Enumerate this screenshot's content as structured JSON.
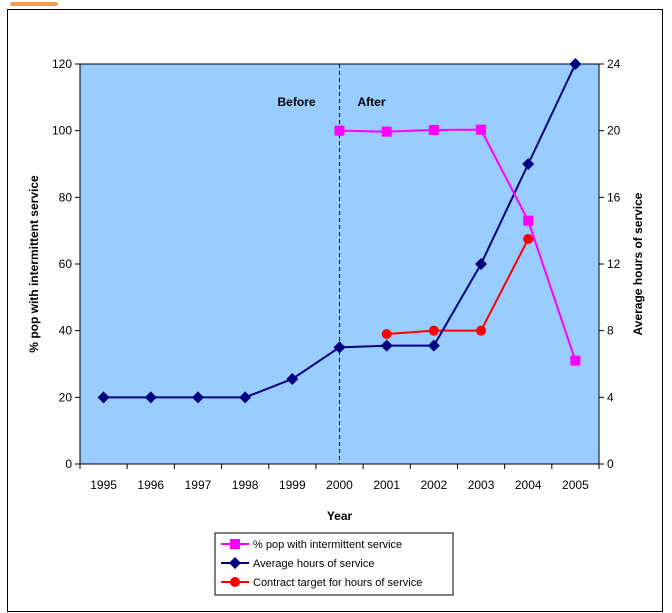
{
  "chart_data": {
    "type": "line",
    "title": "",
    "xlabel": "Year",
    "ylabel_left": "% pop with intermittent service",
    "ylabel_right": "Average hours of service",
    "categories": [
      "1995",
      "1996",
      "1997",
      "1998",
      "1999",
      "2000",
      "2001",
      "2002",
      "2003",
      "2004",
      "2005"
    ],
    "y_left": {
      "min": 0,
      "max": 120,
      "ticks": [
        0,
        20,
        40,
        60,
        80,
        100,
        120
      ]
    },
    "y_right": {
      "min": 0,
      "max": 24,
      "ticks": [
        0,
        4,
        8,
        12,
        16,
        20,
        24
      ]
    },
    "grid": false,
    "plot_background": "#99ccff",
    "annotations": [
      {
        "text": "Before",
        "category": "2000",
        "side": "left"
      },
      {
        "text": "After",
        "category": "2000",
        "side": "right"
      }
    ],
    "divider_category": "2000",
    "legend": {
      "placement": "bottom-center"
    },
    "series": [
      {
        "name": "% pop with intermittent service",
        "axis": "left",
        "color": "#ff00ff",
        "marker": "square",
        "values": [
          null,
          null,
          null,
          null,
          null,
          100,
          99.7,
          100.2,
          100.3,
          73,
          31
        ]
      },
      {
        "name": "Average hours of service",
        "axis": "right",
        "color": "#000080",
        "marker": "diamond",
        "values": [
          4,
          4,
          4,
          4,
          5.1,
          7,
          7.1,
          7.1,
          12,
          18,
          24
        ]
      },
      {
        "name": "Contract target for hours of service",
        "axis": "right",
        "color": "#ff0000",
        "marker": "circle",
        "values": [
          null,
          null,
          null,
          null,
          null,
          null,
          7.8,
          8,
          8,
          13.5,
          null
        ]
      }
    ]
  }
}
